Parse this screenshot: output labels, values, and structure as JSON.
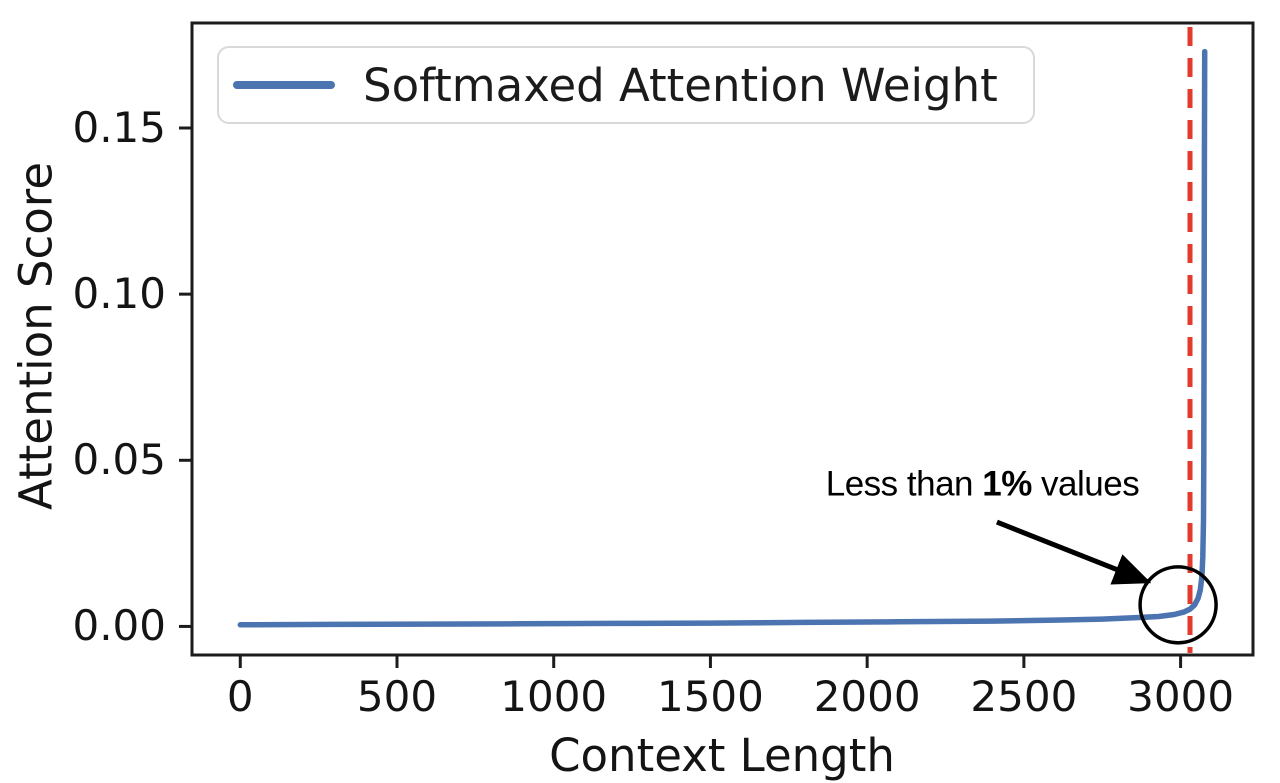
{
  "chart_data": {
    "type": "line",
    "title": "",
    "xlabel": "Context Length",
    "ylabel": "Attention Score",
    "x_ticks": [
      0,
      500,
      1000,
      1500,
      2000,
      2500,
      3000
    ],
    "y_ticks": [
      0,
      0.05,
      0.1,
      0.15
    ],
    "y_tick_labels": [
      "0.00",
      "0.05",
      "0.10",
      "0.15"
    ],
    "xlim": [
      -154,
      3231
    ],
    "ylim": [
      -0.0086,
      0.1816
    ],
    "grid": false,
    "legend_position": "upper left",
    "series": [
      {
        "name": "Softmaxed Attention Weight",
        "color": "#4c74b0",
        "points": [
          [
            0,
            0.0005
          ],
          [
            300,
            0.0006
          ],
          [
            600,
            0.0007
          ],
          [
            900,
            0.0008
          ],
          [
            1200,
            0.0009
          ],
          [
            1500,
            0.001
          ],
          [
            1800,
            0.0012
          ],
          [
            2100,
            0.0014
          ],
          [
            2400,
            0.0016
          ],
          [
            2600,
            0.0019
          ],
          [
            2750,
            0.0022
          ],
          [
            2850,
            0.0026
          ],
          [
            2930,
            0.003
          ],
          [
            2980,
            0.0036
          ],
          [
            3010,
            0.0043
          ],
          [
            3030,
            0.0052
          ],
          [
            3045,
            0.0065
          ],
          [
            3056,
            0.0085
          ],
          [
            3063,
            0.011
          ],
          [
            3068,
            0.015
          ],
          [
            3071,
            0.021
          ],
          [
            3073,
            0.032
          ],
          [
            3074,
            0.05
          ],
          [
            3075,
            0.09
          ],
          [
            3076,
            0.14
          ],
          [
            3077,
            0.173
          ]
        ]
      }
    ],
    "vline": {
      "x": 3030,
      "color": "#e23a2c",
      "style": "dashed"
    },
    "annotation": {
      "prefix": "Less than ",
      "bold": "1%",
      "suffix": " values",
      "text_center": [
        2368,
        0.043
      ],
      "arrow_from": [
        2414,
        0.0314
      ],
      "arrow_to": [
        2896,
        0.0134
      ],
      "circle_center": [
        2992,
        0.0065
      ],
      "circle_radius_px": 38,
      "color": "#000000"
    }
  },
  "legend": {
    "label": "Softmaxed Attention Weight"
  },
  "colors": {
    "spine": "#1c1c1c",
    "text": "#141414",
    "line": "#4c74b0",
    "vline": "#e23a2c"
  }
}
